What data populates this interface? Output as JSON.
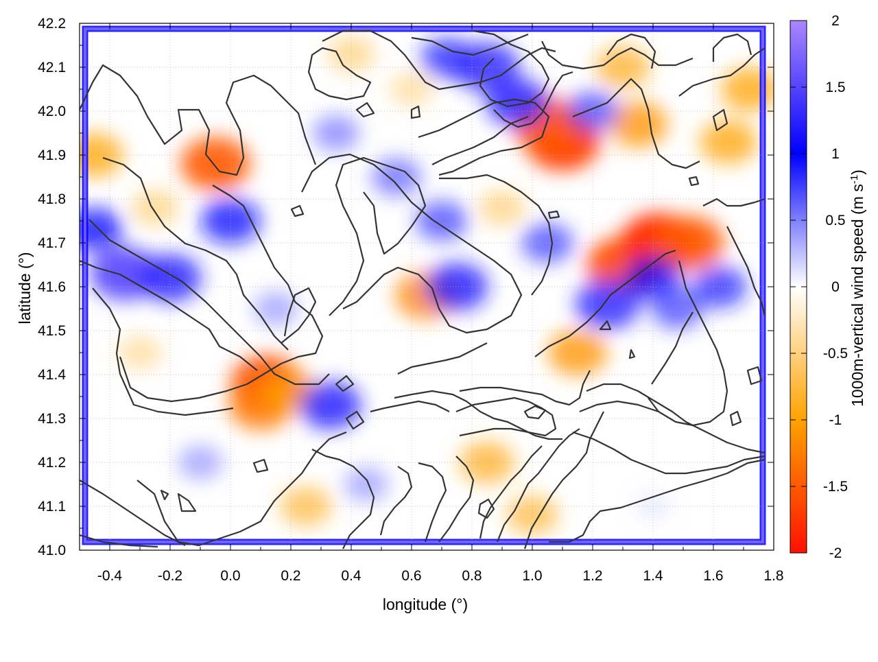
{
  "chart_data": {
    "type": "heatmap",
    "title": "",
    "xlabel": "longitude (°)",
    "ylabel": "latitude (°)",
    "xlim": [
      -0.5,
      1.8
    ],
    "ylim": [
      41.0,
      42.2
    ],
    "x_ticks": [
      "-0.4",
      "-0.2",
      "0.0",
      "0.2",
      "0.4",
      "0.6",
      "0.8",
      "1.0",
      "1.2",
      "1.4",
      "1.6",
      "1.8"
    ],
    "y_ticks": [
      "41.0",
      "41.1",
      "41.2",
      "41.3",
      "41.4",
      "41.5",
      "41.6",
      "41.7",
      "41.8",
      "41.9",
      "42.0",
      "42.1",
      "42.2"
    ],
    "grid": true,
    "colorbar": {
      "label_main": "1000m-vertical wind speed (m s",
      "label_sup": "-1",
      "label_end": ")",
      "range": [
        -2,
        2
      ],
      "ticks": [
        "2",
        "1.5",
        "1",
        "0.5",
        "0",
        "-0.5",
        "-1",
        "-1.5",
        "-2"
      ],
      "palette": [
        {
          "value": -2.0,
          "color": "#ff1100"
        },
        {
          "value": -1.0,
          "color": "#ffa200"
        },
        {
          "value": 0.0,
          "color": "#ffffff"
        },
        {
          "value": 1.0,
          "color": "#0000ff"
        },
        {
          "value": 2.0,
          "color": "#aa88ff"
        }
      ]
    },
    "field_features": [
      {
        "lon": -0.05,
        "lat": 41.88,
        "value": -1.5
      },
      {
        "lon": -0.45,
        "lat": 41.9,
        "value": -1.0
      },
      {
        "lon": 0.12,
        "lat": 41.38,
        "value": -1.6
      },
      {
        "lon": 0.1,
        "lat": 41.33,
        "value": -1.3
      },
      {
        "lon": 0.2,
        "lat": 41.36,
        "value": -1.0
      },
      {
        "lon": -0.25,
        "lat": 41.78,
        "value": -0.6
      },
      {
        "lon": -0.3,
        "lat": 41.45,
        "value": -0.5
      },
      {
        "lon": 0.25,
        "lat": 41.1,
        "value": -0.8
      },
      {
        "lon": 0.65,
        "lat": 41.58,
        "value": -1.2
      },
      {
        "lon": 0.85,
        "lat": 41.2,
        "value": -0.9
      },
      {
        "lon": 1.0,
        "lat": 41.08,
        "value": -0.8
      },
      {
        "lon": 1.1,
        "lat": 41.93,
        "value": -1.7
      },
      {
        "lon": 1.05,
        "lat": 41.97,
        "value": -1.5
      },
      {
        "lon": 1.3,
        "lat": 41.65,
        "value": -1.6
      },
      {
        "lon": 1.42,
        "lat": 41.7,
        "value": -1.8
      },
      {
        "lon": 1.52,
        "lat": 41.7,
        "value": -1.5
      },
      {
        "lon": 1.15,
        "lat": 41.45,
        "value": -1.1
      },
      {
        "lon": 1.35,
        "lat": 41.97,
        "value": -1.1
      },
      {
        "lon": 1.3,
        "lat": 42.1,
        "value": -0.9
      },
      {
        "lon": 1.72,
        "lat": 42.05,
        "value": -1.0
      },
      {
        "lon": 1.65,
        "lat": 41.93,
        "value": -1.0
      },
      {
        "lon": 0.9,
        "lat": 41.78,
        "value": -0.6
      },
      {
        "lon": 0.4,
        "lat": 42.13,
        "value": -0.6
      },
      {
        "lon": 0.6,
        "lat": 42.05,
        "value": -0.5
      },
      {
        "lon": -0.35,
        "lat": 41.63,
        "value": 1.5
      },
      {
        "lon": -0.2,
        "lat": 41.62,
        "value": 1.2
      },
      {
        "lon": -0.45,
        "lat": 41.73,
        "value": 1.0
      },
      {
        "lon": 0.0,
        "lat": 41.75,
        "value": 1.1
      },
      {
        "lon": 0.33,
        "lat": 41.33,
        "value": 1.2
      },
      {
        "lon": 0.75,
        "lat": 41.6,
        "value": 1.2
      },
      {
        "lon": 0.7,
        "lat": 41.75,
        "value": 0.8
      },
      {
        "lon": 0.55,
        "lat": 41.85,
        "value": 0.7
      },
      {
        "lon": 0.85,
        "lat": 42.1,
        "value": 1.3
      },
      {
        "lon": 0.95,
        "lat": 42.02,
        "value": 1.2
      },
      {
        "lon": 0.72,
        "lat": 42.12,
        "value": 0.9
      },
      {
        "lon": 1.25,
        "lat": 41.56,
        "value": 1.3
      },
      {
        "lon": 1.4,
        "lat": 41.62,
        "value": 1.0
      },
      {
        "lon": 1.62,
        "lat": 41.6,
        "value": 0.9
      },
      {
        "lon": 1.48,
        "lat": 41.55,
        "value": 0.8
      },
      {
        "lon": 1.05,
        "lat": 41.7,
        "value": 0.8
      },
      {
        "lon": 1.2,
        "lat": 42.0,
        "value": 0.8
      },
      {
        "lon": 0.35,
        "lat": 41.95,
        "value": 0.6
      },
      {
        "lon": 0.15,
        "lat": 41.55,
        "value": 0.5
      },
      {
        "lon": -0.1,
        "lat": 41.2,
        "value": 0.5
      },
      {
        "lon": 0.45,
        "lat": 41.15,
        "value": 0.5
      },
      {
        "lon": 1.4,
        "lat": 41.1,
        "value": 0.15
      }
    ],
    "frame_value": 1.0,
    "contour_levels_note": "terrain elevation contours (unlabeled)"
  }
}
